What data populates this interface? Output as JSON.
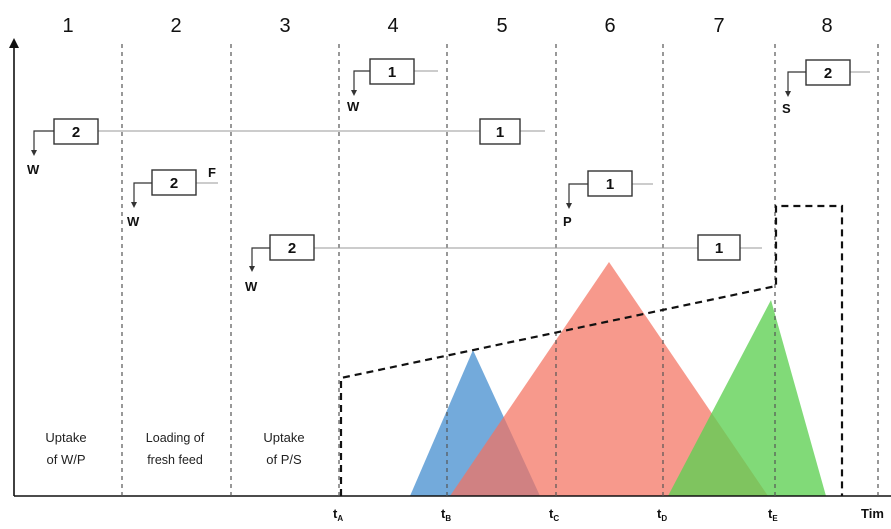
{
  "sections": [
    "1",
    "2",
    "3",
    "4",
    "5",
    "6",
    "7",
    "8"
  ],
  "descriptions": {
    "s1": [
      "Uptake",
      "of W/P"
    ],
    "s2": [
      "Loading of",
      "fresh feed"
    ],
    "s3": [
      "Uptake",
      "of P/S"
    ]
  },
  "time_ticks": {
    "a": {
      "main": "t",
      "sub": "A"
    },
    "b": {
      "main": "t",
      "sub": "B"
    },
    "c": {
      "main": "t",
      "sub": "C"
    },
    "d": {
      "main": "t",
      "sub": "D"
    },
    "e": {
      "main": "t",
      "sub": "E"
    }
  },
  "time_axis_label": "Tim",
  "columns": {
    "r1_box1": "2",
    "r1_box2": "1",
    "r1_out": "W",
    "r2_box": "2",
    "r2_feed": "F",
    "r2_out": "W",
    "r3_box1": "2",
    "r3_box2": "1",
    "r3_out": "W",
    "r4_box": "1",
    "r4_out": "W",
    "r5_box": "1",
    "r5_out": "P",
    "r6_box": "2",
    "r6_out": "S"
  },
  "colors": {
    "blue_peak": "#5b9bd5",
    "red_peak": "#f4715f",
    "green_peak": "#5ecf52",
    "dashed_profile": "#111111"
  }
}
